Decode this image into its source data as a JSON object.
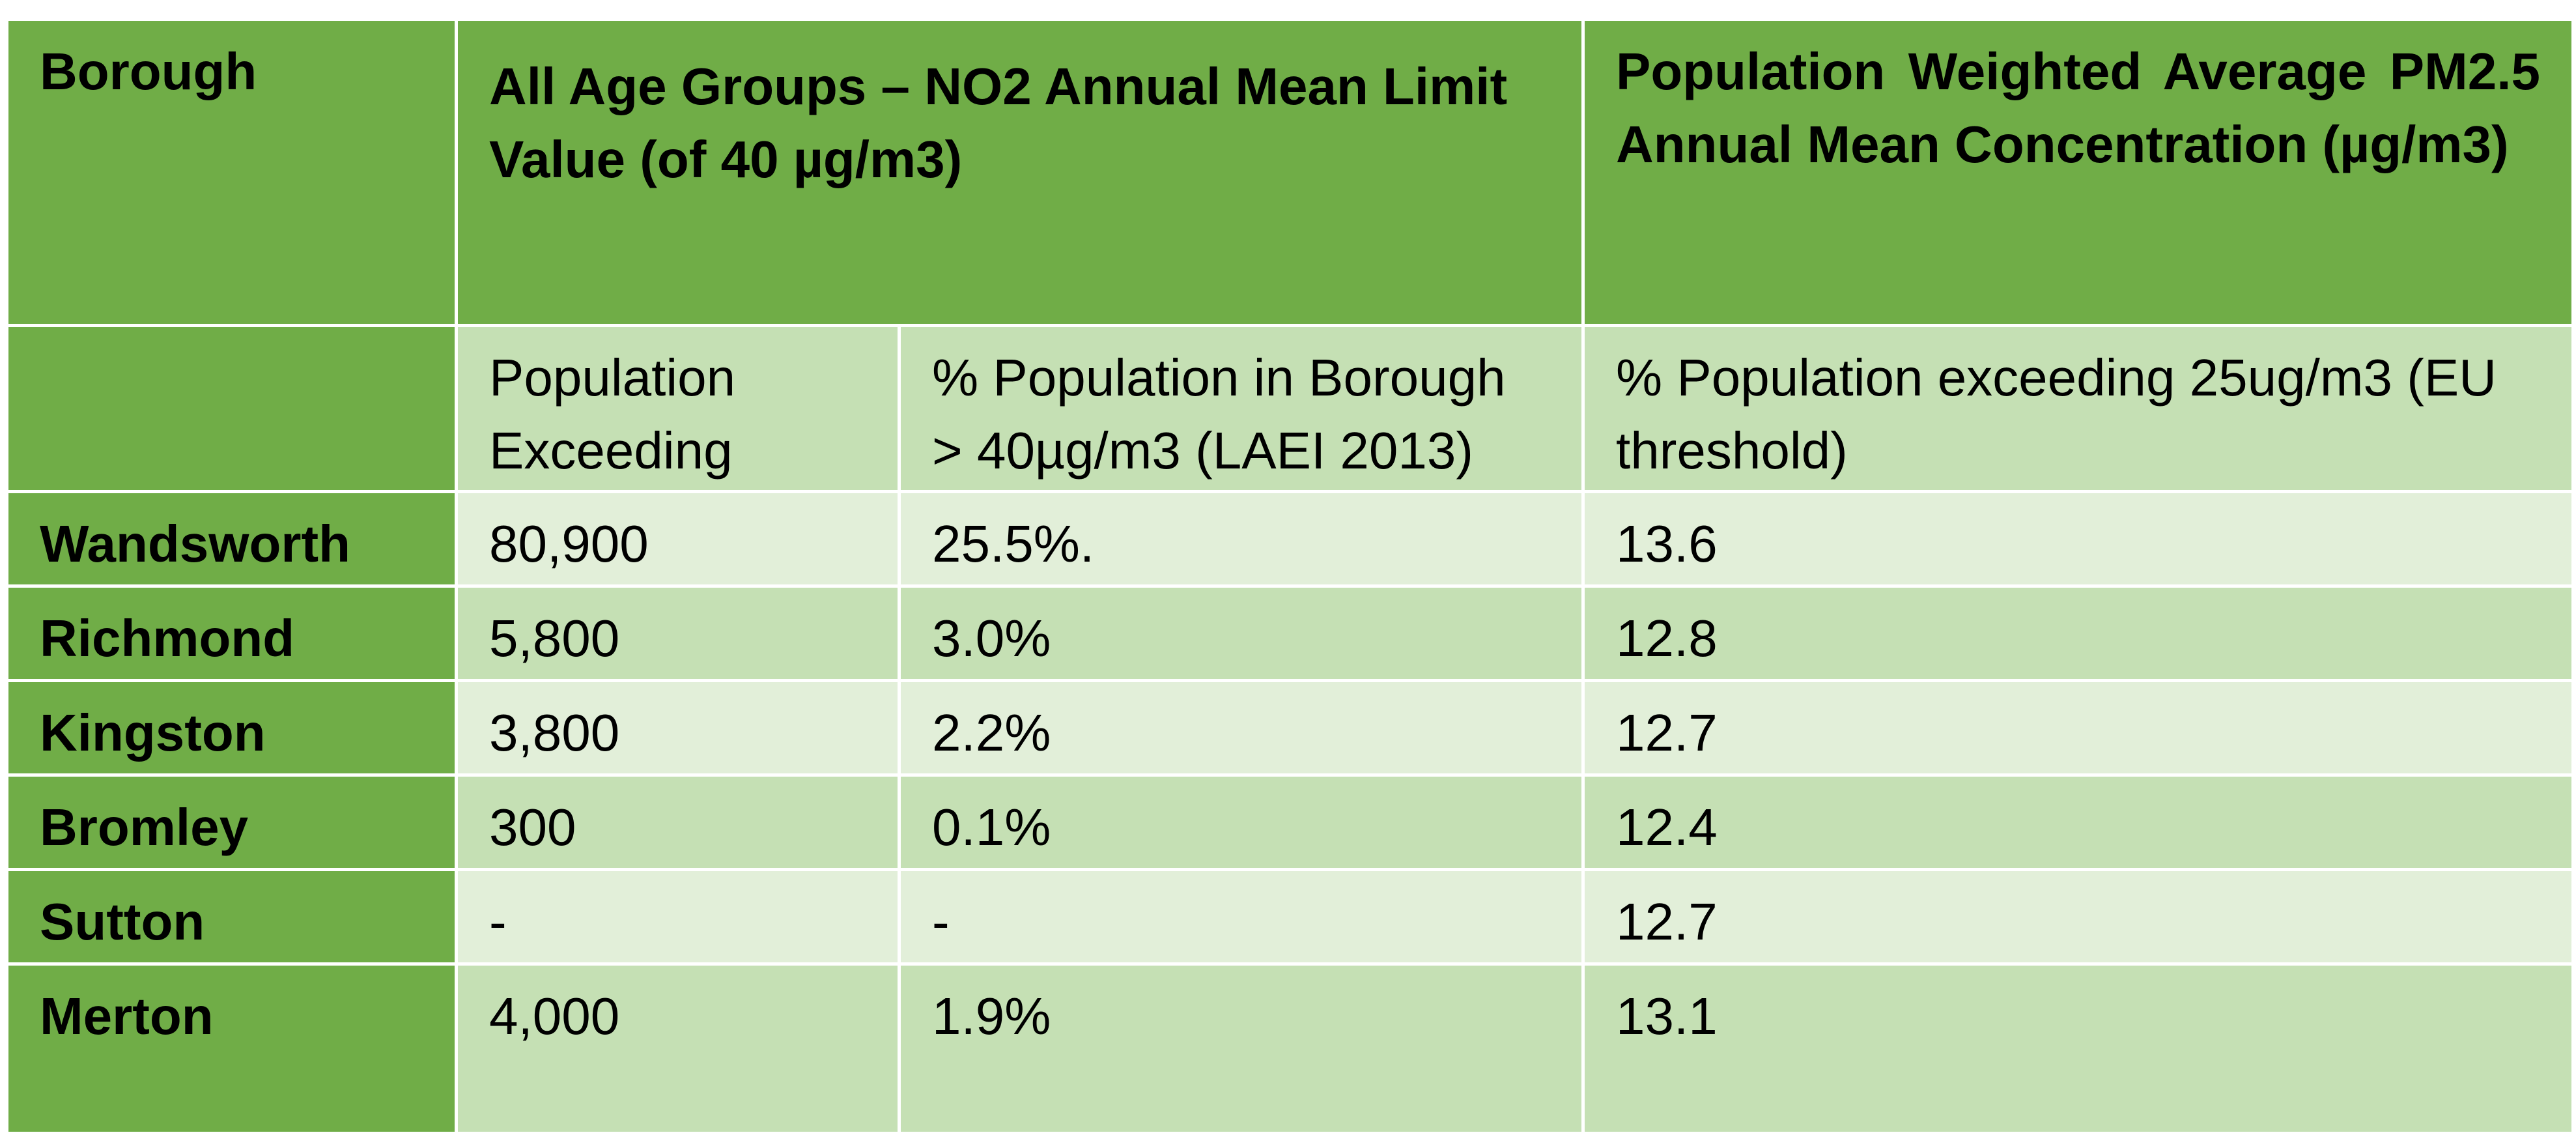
{
  "header": {
    "borough": "Borough",
    "no2": "All Age Groups – NO2 Annual Mean Limit Value (of 40 µg/m3)",
    "pm25": "Population Weighted Average PM2.5 Annual Mean Concentration (µg/m3)"
  },
  "subheader": {
    "population_exceeding": "Population Exceeding",
    "pct_population": "% Population in Borough > 40µg/m3 (LAEI 2013)",
    "pct_pm25": "% Population exceeding 25ug/m3 (EU threshold)"
  },
  "rows": [
    {
      "borough": "Wandsworth",
      "population_exceeding": "80,900",
      "pct_population": "25.5%.",
      "pm25": "13.6"
    },
    {
      "borough": "Richmond",
      "population_exceeding": "5,800",
      "pct_population": "3.0%",
      "pm25": "12.8"
    },
    {
      "borough": "Kingston",
      "population_exceeding": "3,800",
      "pct_population": "2.2%",
      "pm25": "12.7"
    },
    {
      "borough": "Bromley",
      "population_exceeding": "300",
      "pct_population": "0.1%",
      "pm25": "12.4"
    },
    {
      "borough": "Sutton",
      "population_exceeding": "-",
      "pct_population": "-",
      "pm25": "12.7"
    },
    {
      "borough": "Merton",
      "population_exceeding": "4,000",
      "pct_population": "1.9%",
      "pm25": "13.1"
    }
  ],
  "colors": {
    "header_green": "#70ad47",
    "row_light_green": "#c5e0b4",
    "row_pale_green": "#e2efd9"
  }
}
